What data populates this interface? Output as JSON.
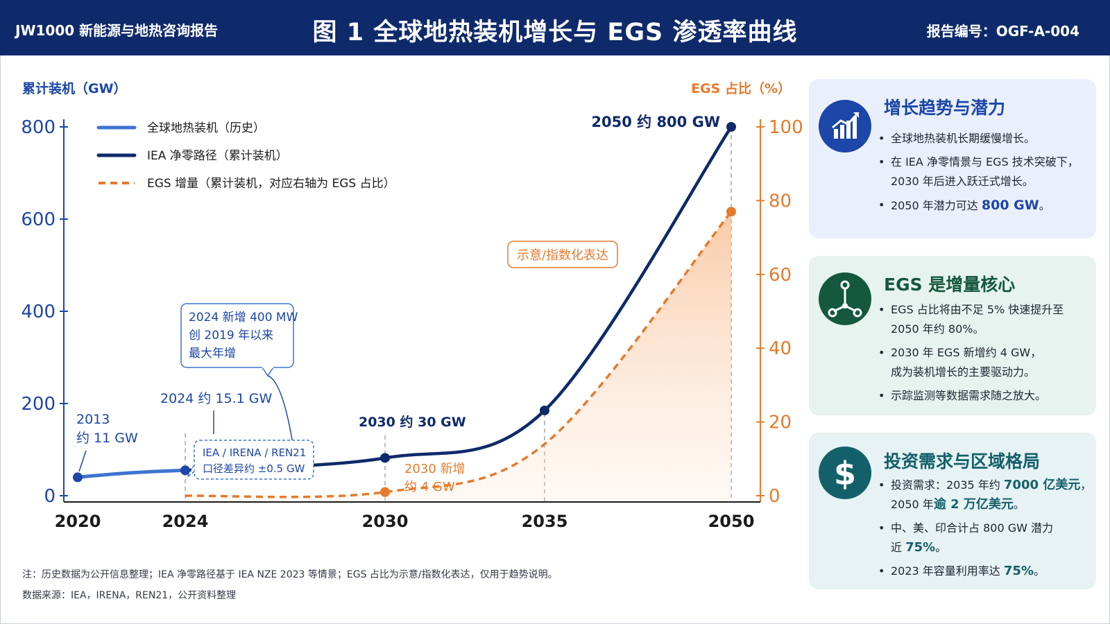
{
  "header": {
    "org": "JW1000  新能源与地热咨询报告",
    "title": "图 1  全球地热装机增长与 EGS 渗透率曲线",
    "report_code": "报告编号：OGF-A-004"
  },
  "chart_data": {
    "type": "line",
    "x_ticks": [
      "2020",
      "2024",
      "2030",
      "2035",
      "2050"
    ],
    "y_left": {
      "label": "累计装机（GW）",
      "ticks": [
        "0",
        "200",
        "400",
        "600",
        "800"
      ],
      "range": [
        0,
        800
      ]
    },
    "y_right": {
      "label": "EGS 占比（%）",
      "ticks": [
        "0",
        "20",
        "40",
        "60",
        "80",
        "100"
      ],
      "range": [
        0,
        100
      ]
    },
    "legend": [
      {
        "name": "全球地热装机（历史）",
        "color": "#3d74cf",
        "style": "solid-light"
      },
      {
        "name": "IEA 净零路径（累计装机）",
        "color": "#0f2a6b",
        "style": "solid"
      },
      {
        "name": "EGS 增量（累计装机，对应右轴为 EGS 占比）",
        "color": "#e57a2c",
        "style": "dashed"
      }
    ],
    "series": [
      {
        "name": "全球地热装机（历史）",
        "points": [
          {
            "x": 2020,
            "y": 40
          },
          {
            "x": 2024,
            "y": 55
          }
        ]
      },
      {
        "name": "IEA 净零路径（累计装机）",
        "points": [
          {
            "x": 2024,
            "y": 55
          },
          {
            "x": 2030,
            "y": 82
          },
          {
            "x": 2035,
            "y": 185
          },
          {
            "x": 2050,
            "y": 800
          }
        ]
      },
      {
        "name": "EGS 增量（累计装机，对应右轴为 EGS 占比）",
        "axis": "right",
        "points": [
          {
            "x": 2024,
            "y": 0
          },
          {
            "x": 2030,
            "y": 1
          },
          {
            "x": 2035,
            "y": 14
          },
          {
            "x": 2050,
            "y": 77
          }
        ]
      }
    ],
    "annotations": {
      "p2013_line1": "2013",
      "p2013_line2": "约 11 GW",
      "p2024": "2024 约 15.1 GW",
      "p2030": "2030 约 30 GW",
      "p2050": "2050 约 800 GW",
      "egs2030_line1": "2030 新增",
      "egs2030_line2": "约 4 GW",
      "callout1_line1": "2024 新增 400 MW",
      "callout1_line2": "创 2019 年以来",
      "callout1_line3": "最大年增",
      "callout2_line1": "IEA / IRENA / REN21",
      "callout2_line2": "口径差异约 ±0.5 GW",
      "illustrative": "示意/指数化表达"
    }
  },
  "panels": {
    "growth": {
      "title": "增长趋势与潜力",
      "icon": "bar-chart-trend-icon",
      "b1": "全球地热装机长期缓慢增长。",
      "b2a": "在 IEA 净零情景与 EGS 技术突破下，",
      "b2b": "2030 年后进入跃迁式增长。",
      "b3a": "2050 年潜力可达 ",
      "b3b": "800 GW",
      "b3c": "。"
    },
    "egs": {
      "title": "EGS 是增量核心",
      "icon": "network-node-icon",
      "b1a": "EGS 占比将由不足 5% 快速提升至",
      "b1b": "2050 年约 80%。",
      "b2a": "2030 年 EGS 新增约 4 GW，",
      "b2b": "成为装机增长的主要驱动力。",
      "b3": "示踪监测等数据需求随之放大。"
    },
    "invest": {
      "title": "投资需求与区域格局",
      "icon": "dollar-icon",
      "b1a": "投资需求：2035 年约 ",
      "b1b": "7000 亿美元",
      "b1c": "，",
      "b1d": "2050 年",
      "b1e": "逾 2 万亿美元",
      "b1f": "。",
      "b2a": "中、美、印合计占 800 GW 潜力",
      "b2b": "近 ",
      "b2c": "75%",
      "b2d": "。",
      "b3a": "2023 年容量利用率达 ",
      "b3b": "75%",
      "b3c": "。"
    }
  },
  "footer": {
    "note": "注：历史数据为公开信息整理；IEA 净零路径基于 IEA NZE 2023 等情景；EGS 占比为示意/指数化表达，仅用于趋势说明。",
    "source": "数据来源：IEA，IRENA，REN21，公开资料整理"
  },
  "colors": {
    "navy": "#0f2a6b",
    "blue": "#3d74cf",
    "orange": "#e57a2c",
    "panel_blue": "#eaf0fb",
    "panel_green": "#e7f3ee",
    "panel_teal": "#e6f2f4"
  }
}
